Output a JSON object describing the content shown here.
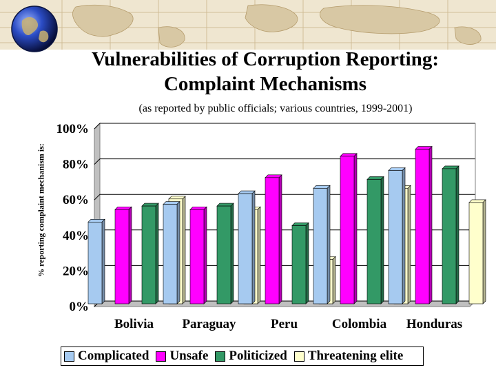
{
  "header": {
    "title_line1": "Vulnerabilities of Corruption Reporting:",
    "title_line2": "Complaint Mechanisms",
    "subtitle": "(as reported by public officials; various countries, 1999-2001)"
  },
  "colors": {
    "Complicated": "#a6caf0",
    "Unsafe": "#ff00ff",
    "Politicized": "#339966",
    "Threatening elite": "#ffffcc"
  },
  "chart_data": {
    "type": "bar",
    "title": "Vulnerabilities of Corruption Reporting: Complaint Mechanisms",
    "subtitle": "(as reported by public officials; various countries, 1999-2001)",
    "xlabel": "",
    "ylabel": "% reporting complaint mechanism is:",
    "ylim": [
      0,
      100
    ],
    "yticks": [
      "0%",
      "20%",
      "40%",
      "60%",
      "80%",
      "100%"
    ],
    "grid": true,
    "legend_position": "bottom",
    "categories": [
      "Bolivia",
      "Paraguay",
      "Peru",
      "Colombia",
      "Honduras"
    ],
    "series": [
      {
        "name": "Complicated",
        "values": [
          46,
          56,
          62,
          65,
          75
        ]
      },
      {
        "name": "Unsafe",
        "values": [
          53,
          53,
          71,
          83,
          87
        ]
      },
      {
        "name": "Politicized",
        "values": [
          55,
          55,
          44,
          70,
          76
        ]
      },
      {
        "name": "Threatening elite",
        "values": [
          59,
          53,
          25,
          65,
          57
        ]
      }
    ]
  }
}
